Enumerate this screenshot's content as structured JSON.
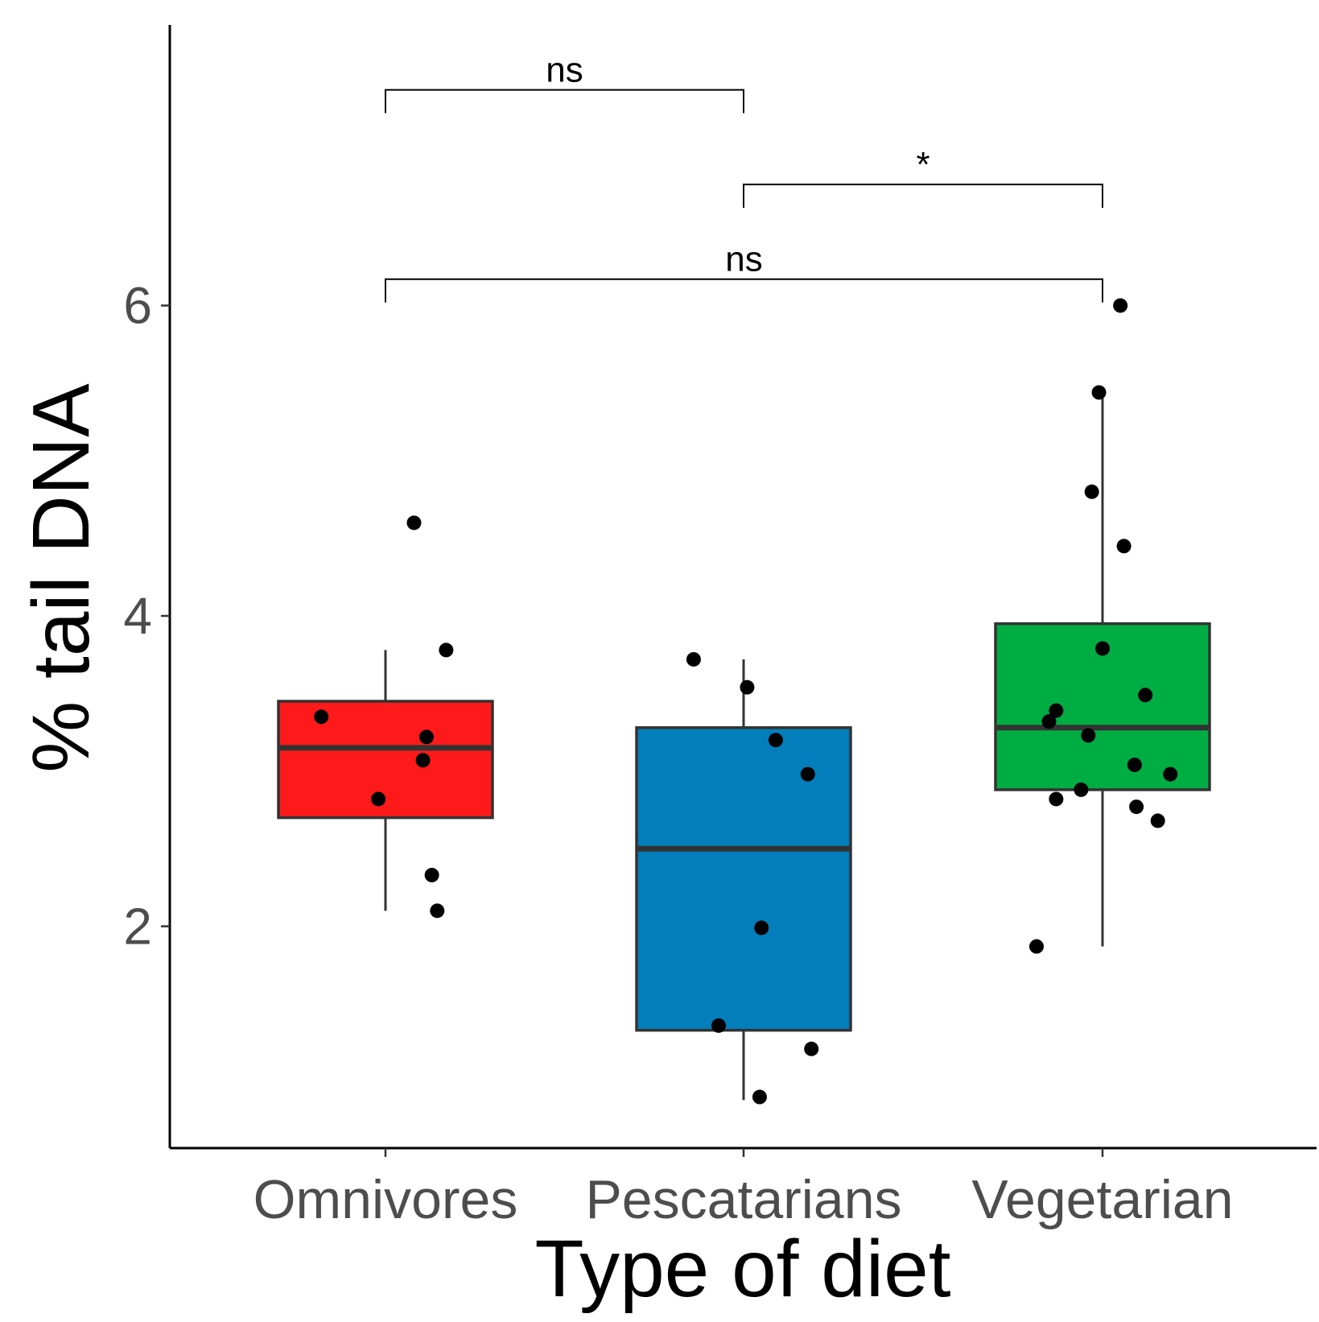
{
  "chart_data": {
    "type": "boxplot",
    "title": "",
    "xlabel": "Type of diet",
    "ylabel": "% tail DNA",
    "categories": [
      "Omnivores",
      "Pescatarians",
      "Vegetarian"
    ],
    "ylim": [
      0.6,
      7.85
    ],
    "yticks": [
      2,
      4,
      6
    ],
    "ytick_labels": [
      "2",
      "4",
      "6"
    ],
    "grid": false,
    "legend": "none",
    "colors": [
      "#fe1a1a",
      "#037ebb",
      "#00ad43"
    ],
    "box_edge_color": "#333333",
    "point_color": "#000000",
    "boxes": [
      {
        "category": "Omnivores",
        "whisker_low": 2.1,
        "q1": 2.7,
        "median": 3.15,
        "q3": 3.45,
        "whisker_high": 3.78,
        "points": [
          {
            "x": -0.18,
            "y": 3.35
          },
          {
            "x": -0.02,
            "y": 2.82
          },
          {
            "x": 0.08,
            "y": 4.6
          },
          {
            "x": 0.17,
            "y": 3.78
          },
          {
            "x": 0.115,
            "y": 3.22
          },
          {
            "x": 0.105,
            "y": 3.07
          },
          {
            "x": 0.13,
            "y": 2.33
          },
          {
            "x": 0.145,
            "y": 2.1
          }
        ]
      },
      {
        "category": "Pescatarians",
        "whisker_low": 0.88,
        "q1": 1.33,
        "median": 2.5,
        "q3": 3.28,
        "whisker_high": 3.72,
        "points": [
          {
            "x": -0.14,
            "y": 3.72
          },
          {
            "x": 0.01,
            "y": 3.54
          },
          {
            "x": 0.09,
            "y": 3.2
          },
          {
            "x": 0.18,
            "y": 2.98
          },
          {
            "x": 0.05,
            "y": 1.99
          },
          {
            "x": -0.07,
            "y": 1.36
          },
          {
            "x": 0.19,
            "y": 1.21
          },
          {
            "x": 0.045,
            "y": 0.9
          }
        ]
      },
      {
        "category": "Vegetarian",
        "whisker_low": 1.87,
        "q1": 2.88,
        "median": 3.28,
        "q3": 3.95,
        "whisker_high": 5.44,
        "points": [
          {
            "x": 0.05,
            "y": 6.0
          },
          {
            "x": -0.01,
            "y": 5.44
          },
          {
            "x": -0.03,
            "y": 4.8
          },
          {
            "x": 0.06,
            "y": 4.45
          },
          {
            "x": 0.0,
            "y": 3.79
          },
          {
            "x": 0.12,
            "y": 3.49
          },
          {
            "x": -0.13,
            "y": 3.39
          },
          {
            "x": -0.15,
            "y": 3.32
          },
          {
            "x": -0.04,
            "y": 3.23
          },
          {
            "x": 0.09,
            "y": 3.04
          },
          {
            "x": 0.19,
            "y": 2.98
          },
          {
            "x": -0.06,
            "y": 2.88
          },
          {
            "x": -0.13,
            "y": 2.82
          },
          {
            "x": 0.095,
            "y": 2.77
          },
          {
            "x": 0.155,
            "y": 2.68
          },
          {
            "x": -0.185,
            "y": 1.87
          }
        ]
      }
    ],
    "significance": [
      {
        "from": 0,
        "to": 1,
        "label": "ns",
        "y": 7.39,
        "tip": 7.24
      },
      {
        "from": 1,
        "to": 2,
        "label": "*",
        "y": 6.78,
        "tip": 6.63
      },
      {
        "from": 0,
        "to": 2,
        "label": "ns",
        "y": 6.17,
        "tip": 6.02
      }
    ]
  }
}
